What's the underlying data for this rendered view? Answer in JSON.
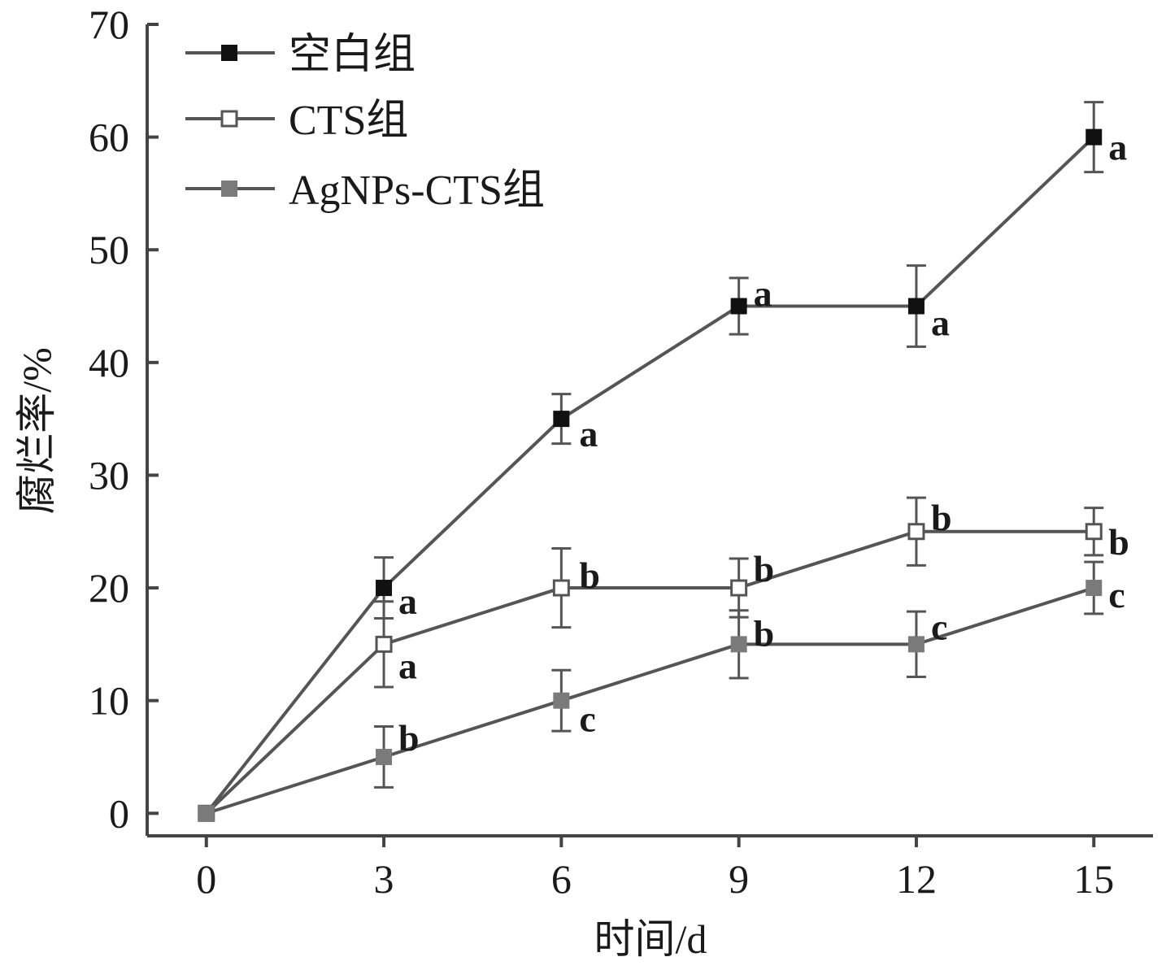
{
  "chart_data": {
    "type": "line",
    "xlabel": "时间/d",
    "ylabel": "腐烂率/%",
    "x": [
      0,
      3,
      6,
      9,
      12,
      15
    ],
    "xticks": [
      "0",
      "3",
      "6",
      "9",
      "12",
      "15"
    ],
    "yticks": [
      "0",
      "10",
      "20",
      "30",
      "40",
      "50",
      "60",
      "70"
    ],
    "xlim": [
      -1,
      16
    ],
    "ylim": [
      -2,
      70
    ],
    "legend_position": "top-left",
    "series": [
      {
        "name": "空白组",
        "marker": "filled-square",
        "color": "#111111",
        "values": [
          0,
          20,
          35,
          45,
          45,
          60
        ],
        "errors": [
          0,
          2.7,
          2.2,
          2.5,
          3.6,
          3.1
        ],
        "labels": [
          "",
          "a",
          "a",
          "a",
          "a",
          "a"
        ]
      },
      {
        "name": "CTS组",
        "marker": "open-square",
        "color": "#ffffff",
        "values": [
          0,
          15,
          20,
          20,
          25,
          25
        ],
        "errors": [
          0,
          3.8,
          3.5,
          2.6,
          3.0,
          2.1
        ],
        "labels": [
          "",
          "a",
          "b",
          "b",
          "b",
          "b"
        ]
      },
      {
        "name": "AgNPs-CTS组",
        "marker": "gray-square",
        "color": "#7a7a7a",
        "values": [
          0,
          5,
          10,
          15,
          15,
          20
        ],
        "errors": [
          0,
          2.7,
          2.7,
          3.0,
          2.9,
          2.3
        ],
        "labels": [
          "",
          "b",
          "c",
          "b",
          "c",
          "c"
        ]
      }
    ]
  }
}
